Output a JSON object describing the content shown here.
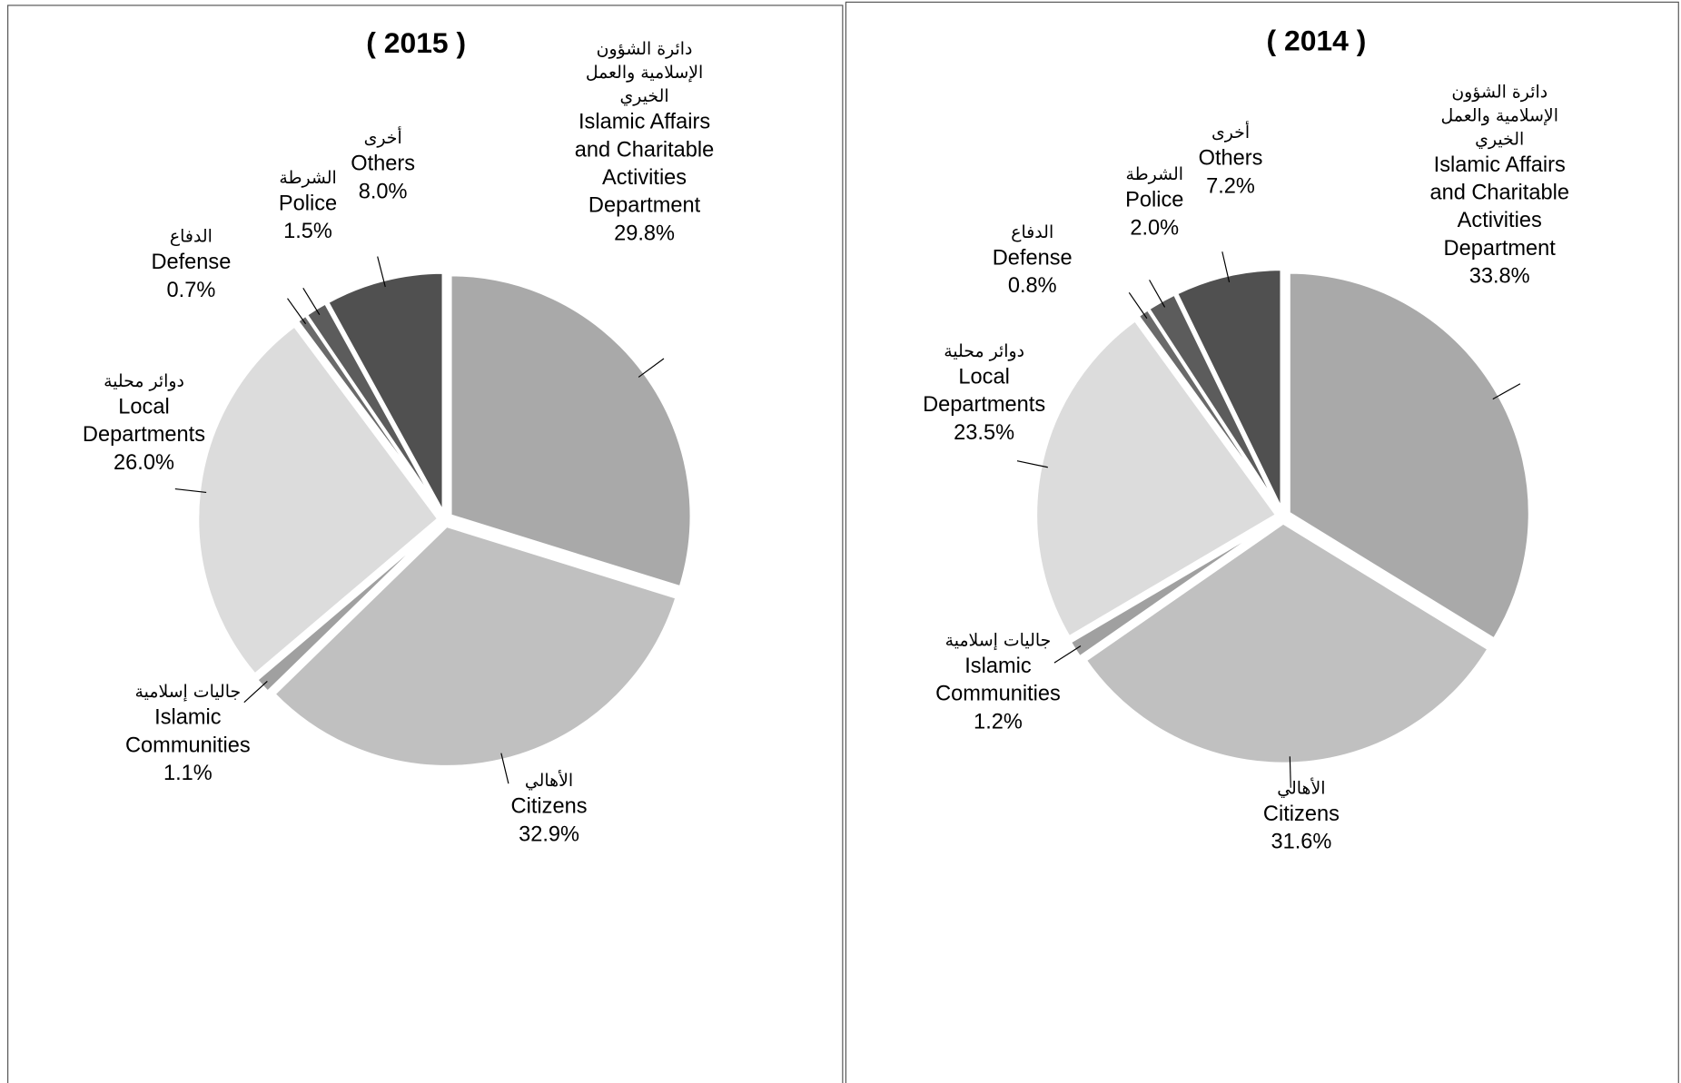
{
  "chart_data": [
    {
      "type": "pie",
      "title": "( 2015 )",
      "categories": [
        "Islamic Affairs and Charitable Activities Department",
        "Citizens",
        "Islamic Communities",
        "Local Departments",
        "Defense",
        "Police",
        "Others"
      ],
      "categories_ar": [
        "دائرة الشؤون الإسلامية والعمل الخيري",
        "الأهالي",
        "جاليات إسلامية",
        "دوائر محلية",
        "الدفاع",
        "الشرطة",
        "أخرى"
      ],
      "values": [
        29.8,
        32.9,
        1.1,
        26.0,
        0.7,
        1.5,
        8.0
      ],
      "value_labels": [
        "29.8%",
        "32.9%",
        "1.1%",
        "26.0%",
        "0.7%",
        "1.5%",
        "8.0%"
      ],
      "colors": [
        "#a9a9a9",
        "#c0c0c0",
        "#a0a0a0",
        "#dcdcdc",
        "#6a6a6a",
        "#5c5c5c",
        "#505050"
      ]
    },
    {
      "type": "pie",
      "title": "( 2014 )",
      "categories": [
        "Islamic Affairs and Charitable Activities Department",
        "Citizens",
        "Islamic Communities",
        "Local Departments",
        "Defense",
        "Police",
        "Others"
      ],
      "categories_ar": [
        "دائرة الشؤون الإسلامية والعمل الخيري",
        "الأهالي",
        "جاليات إسلامية",
        "دوائر محلية",
        "الدفاع",
        "الشرطة",
        "أخرى"
      ],
      "values": [
        33.8,
        31.6,
        1.2,
        23.5,
        0.8,
        2.0,
        7.2
      ],
      "value_labels": [
        "33.8%",
        "31.6%",
        "1.2%",
        "23.5%",
        "0.8%",
        "2.0%",
        "7.2%"
      ],
      "colors": [
        "#a9a9a9",
        "#c0c0c0",
        "#a0a0a0",
        "#dcdcdc",
        "#6a6a6a",
        "#5c5c5c",
        "#505050"
      ]
    }
  ]
}
